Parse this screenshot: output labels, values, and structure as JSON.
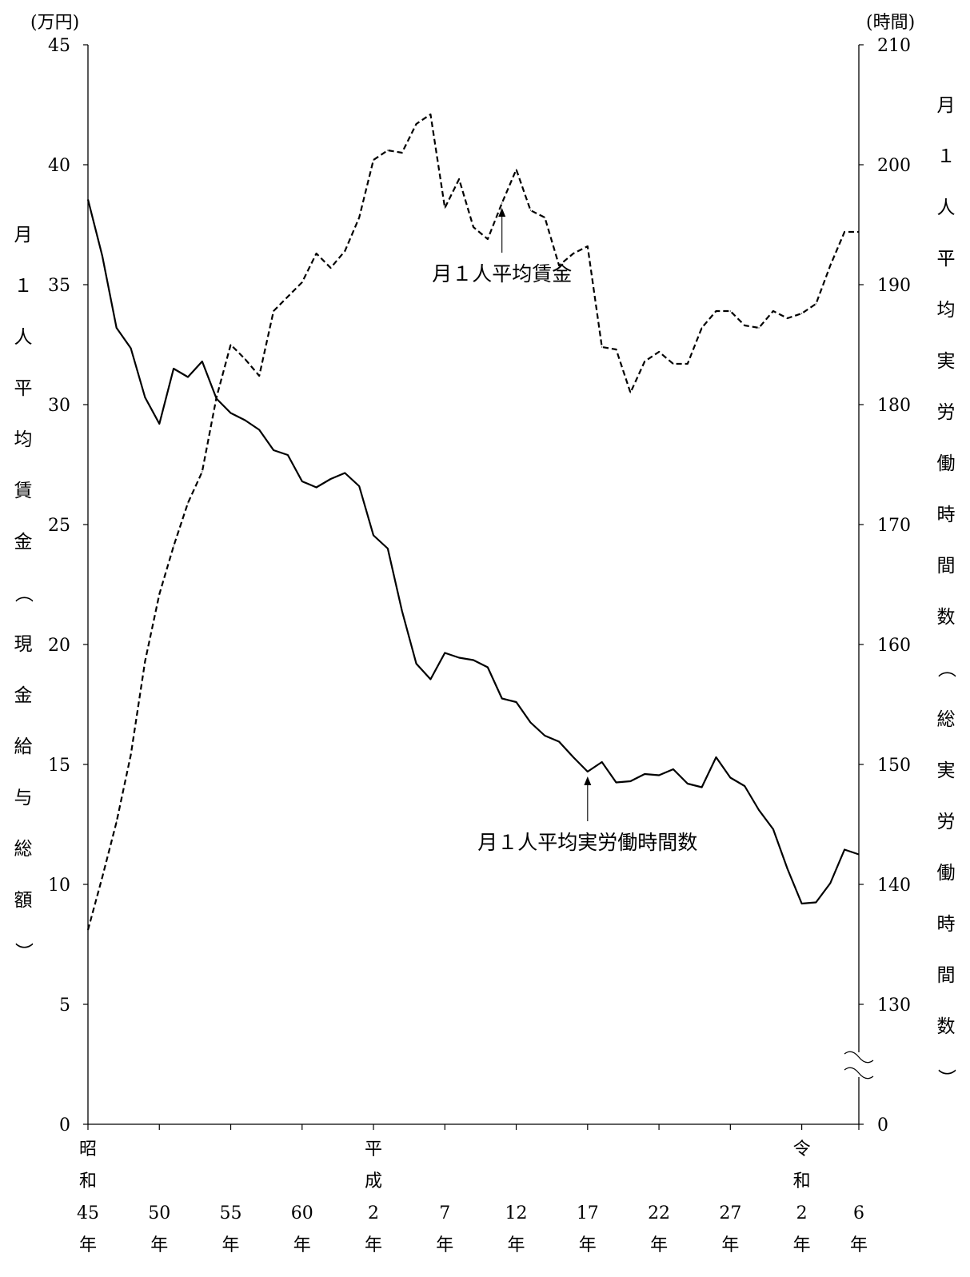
{
  "chart_data": {
    "type": "line",
    "left_unit": "(万円)",
    "right_unit": "(時間)",
    "left_axis_label": "月１人平均賃金（現金給与総額）",
    "right_axis_label": "月１人平均実労働時間数（総実労働時間数）",
    "left_ylim": [
      0,
      45
    ],
    "left_yticks": [
      "0",
      "5",
      "10",
      "15",
      "20",
      "25",
      "30",
      "35",
      "40",
      "45"
    ],
    "right_yticks": [
      "0",
      "130",
      "140",
      "150",
      "160",
      "170",
      "180",
      "190",
      "200",
      "210"
    ],
    "right_axis_break": true,
    "xlim": [
      1970,
      2024
    ],
    "xticks": [
      {
        "year": 1970,
        "label": [
          "昭",
          "和",
          "45",
          "年"
        ]
      },
      {
        "year": 1975,
        "label": [
          "50",
          "年"
        ]
      },
      {
        "year": 1980,
        "label": [
          "55",
          "年"
        ]
      },
      {
        "year": 1985,
        "label": [
          "60",
          "年"
        ]
      },
      {
        "year": 1990,
        "label": [
          "平",
          "成",
          "2",
          "年"
        ]
      },
      {
        "year": 1995,
        "label": [
          "7",
          "年"
        ]
      },
      {
        "year": 2000,
        "label": [
          "12",
          "年"
        ]
      },
      {
        "year": 2005,
        "label": [
          "17",
          "年"
        ]
      },
      {
        "year": 2010,
        "label": [
          "22",
          "年"
        ]
      },
      {
        "year": 2015,
        "label": [
          "27",
          "年"
        ]
      },
      {
        "year": 2020,
        "label": [
          "令",
          "和",
          "2",
          "年"
        ]
      },
      {
        "year": 2024,
        "label": [
          "6",
          "年"
        ]
      }
    ],
    "series": [
      {
        "name": "月１人平均賃金",
        "axis": "left",
        "style": "dashed",
        "color": "#000000",
        "x": [
          1970,
          1971,
          1972,
          1973,
          1974,
          1975,
          1976,
          1977,
          1978,
          1979,
          1980,
          1981,
          1982,
          1983,
          1984,
          1985,
          1986,
          1987,
          1988,
          1989,
          1990,
          1991,
          1992,
          1993,
          1994,
          1995,
          1996,
          1997,
          1998,
          1999,
          2000,
          2001,
          2002,
          2003,
          2004,
          2005,
          2006,
          2007,
          2008,
          2009,
          2010,
          2011,
          2012,
          2013,
          2014,
          2015,
          2016,
          2017,
          2018,
          2019,
          2020,
          2021,
          2022,
          2023,
          2024
        ],
        "values": [
          8.1,
          10.3,
          12.6,
          15.4,
          19.3,
          22.1,
          24.1,
          25.9,
          27.2,
          30.3,
          32.5,
          31.9,
          31.2,
          33.9,
          34.5,
          35.1,
          36.3,
          35.7,
          36.4,
          37.8,
          40.2,
          40.6,
          40.5,
          41.7,
          42.1,
          38.2,
          39.4,
          37.4,
          36.9,
          38.4,
          39.8,
          38.1,
          37.8,
          35.8,
          36.3,
          36.6,
          32.4,
          32.3,
          30.5,
          31.8,
          32.2,
          31.7,
          31.7,
          33.2,
          33.9,
          33.9,
          33.3,
          33.2,
          33.9,
          33.6,
          33.8,
          34.2,
          35.8,
          37.2,
          37.2
        ]
      },
      {
        "name": "月１人平均実労働時間数",
        "axis": "right",
        "style": "solid",
        "color": "#000000",
        "x": [
          1970,
          1971,
          1972,
          1973,
          1974,
          1975,
          1976,
          1977,
          1978,
          1979,
          1980,
          1981,
          1982,
          1983,
          1984,
          1985,
          1986,
          1987,
          1988,
          1989,
          1990,
          1991,
          1992,
          1993,
          1994,
          1995,
          1996,
          1997,
          1998,
          1999,
          2000,
          2001,
          2002,
          2003,
          2004,
          2005,
          2006,
          2007,
          2008,
          2009,
          2010,
          2011,
          2012,
          2013,
          2014,
          2015,
          2016,
          2017,
          2018,
          2019,
          2020,
          2021,
          2022,
          2023,
          2024
        ],
        "values": [
          197.1,
          192.4,
          186.4,
          184.7,
          180.6,
          178.4,
          183.0,
          182.3,
          183.6,
          180.5,
          179.3,
          178.7,
          177.9,
          176.2,
          175.8,
          173.6,
          173.1,
          173.8,
          174.3,
          173.2,
          169.1,
          168.0,
          162.8,
          158.4,
          157.1,
          159.3,
          158.9,
          158.7,
          158.1,
          155.5,
          155.2,
          153.5,
          152.4,
          151.9,
          150.6,
          149.4,
          150.2,
          148.5,
          148.6,
          149.2,
          149.1,
          149.6,
          148.4,
          148.1,
          150.6,
          148.9,
          148.2,
          146.2,
          144.6,
          141.3,
          138.4,
          138.5,
          140.1,
          142.9,
          142.5
        ]
      }
    ],
    "annotations": [
      {
        "text": "月１人平均賃金",
        "series": "月１人平均賃金",
        "year": 1999
      },
      {
        "text": "月１人平均実労働時間数",
        "series": "月１人平均実労働時間数",
        "year": 2005
      }
    ]
  }
}
